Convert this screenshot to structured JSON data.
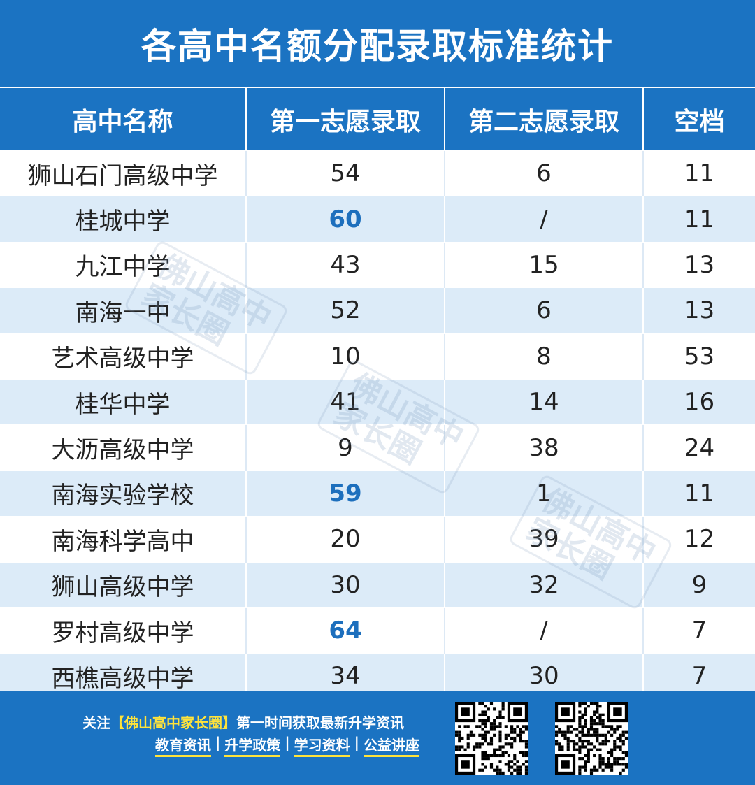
{
  "title": "各高中名额分配录取标准统计",
  "table": {
    "headers": [
      "高中名称",
      "第一志愿录取",
      "第二志愿录取",
      "空档"
    ],
    "rows": [
      {
        "name": "狮山石门高级中学",
        "first": "54",
        "second": "6",
        "gap": "11",
        "highlight": false
      },
      {
        "name": "桂城中学",
        "first": "60",
        "second": "/",
        "gap": "11",
        "highlight": true
      },
      {
        "name": "九江中学",
        "first": "43",
        "second": "15",
        "gap": "13",
        "highlight": false
      },
      {
        "name": "南海一中",
        "first": "52",
        "second": "6",
        "gap": "13",
        "highlight": false
      },
      {
        "name": "艺术高级中学",
        "first": "10",
        "second": "8",
        "gap": "53",
        "highlight": false
      },
      {
        "name": "桂华中学",
        "first": "41",
        "second": "14",
        "gap": "16",
        "highlight": false
      },
      {
        "name": "大沥高级中学",
        "first": "9",
        "second": "38",
        "gap": "24",
        "highlight": false
      },
      {
        "name": "南海实验学校",
        "first": "59",
        "second": "1",
        "gap": "11",
        "highlight": true
      },
      {
        "name": "南海科学高中",
        "first": "20",
        "second": "39",
        "gap": "12",
        "highlight": false
      },
      {
        "name": "狮山高级中学",
        "first": "30",
        "second": "32",
        "gap": "9",
        "highlight": false
      },
      {
        "name": "罗村高级中学",
        "first": "64",
        "second": "/",
        "gap": "7",
        "highlight": true
      },
      {
        "name": "西樵高级中学",
        "first": "34",
        "second": "30",
        "gap": "7",
        "highlight": false
      }
    ]
  },
  "watermark": {
    "line1": "佛山高中",
    "line2": "家长圈"
  },
  "footer": {
    "prefix": "关注",
    "brand": "【佛山高中家长圈】",
    "suffix": "第一时间获取最新升学资讯",
    "tags": [
      "教育资讯",
      "升学政策",
      "学习资料",
      "公益讲座"
    ],
    "separator": "|"
  },
  "colors": {
    "primary": "#1b73c2",
    "stripe": "#dcebf8",
    "highlight": "#1d6fbd",
    "accent": "#ffe33b"
  }
}
